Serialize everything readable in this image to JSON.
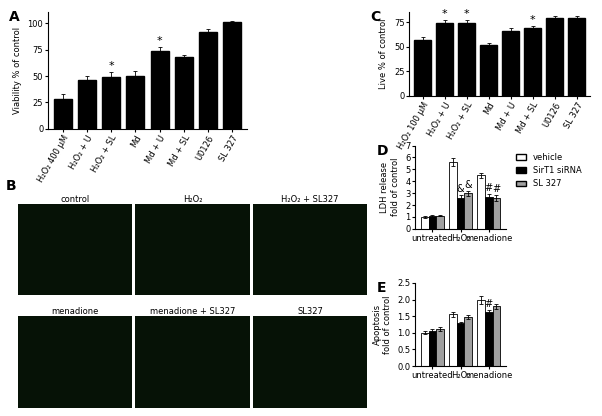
{
  "chart_data": [
    {
      "type": "bar",
      "title": "A",
      "y_label": "Viability % of control",
      "categories": [
        "H₂O₂ 400 µM",
        "H₂O₂ + U",
        "H₂O₂ + SL",
        "Md",
        "Md + U",
        "Md + SL",
        "U0126",
        "SL 327"
      ],
      "values": [
        28,
        46,
        49,
        50,
        74,
        68,
        92,
        101
      ],
      "errors": [
        5,
        4,
        5,
        5,
        3,
        2,
        2,
        1
      ],
      "significance": [
        null,
        null,
        "*",
        null,
        "*",
        null,
        null,
        null
      ],
      "color": "#000000",
      "ylim": [
        0,
        110
      ],
      "yticks": [
        0,
        25,
        50,
        75,
        100
      ]
    },
    {
      "type": "bar",
      "title": "C",
      "y_label": "Live % of control",
      "categories": [
        "H₂O₂ 100 µM",
        "H₂O₂ + U",
        "H₂O₂ + SL",
        "Md",
        "Md + U",
        "Md + SL",
        "U0126",
        "SL 327"
      ],
      "values": [
        57,
        74,
        74,
        52,
        66,
        69,
        79,
        79
      ],
      "errors": [
        3,
        3,
        3,
        2,
        3,
        2,
        2,
        2
      ],
      "significance": [
        null,
        "*",
        "*",
        null,
        null,
        "*",
        null,
        null
      ],
      "color": "#000000",
      "ylim": [
        0,
        85
      ],
      "yticks": [
        0,
        25,
        50,
        75
      ]
    },
    {
      "type": "bar",
      "title": "D",
      "y_label": "LDH release\nfold of control",
      "categories": [
        "untreated",
        "H₂O₂",
        "menadione"
      ],
      "series": [
        {
          "name": "vehicle",
          "color": "#ffffff",
          "values": [
            1.0,
            5.6,
            4.5
          ],
          "errors": [
            0.1,
            0.35,
            0.2
          ],
          "significance": [
            null,
            null,
            null
          ]
        },
        {
          "name": "SirT1 siRNA",
          "color": "#000000",
          "values": [
            1.05,
            2.6,
            2.7
          ],
          "errors": [
            0.1,
            0.25,
            0.25
          ],
          "significance": [
            null,
            "&",
            "#"
          ]
        },
        {
          "name": "SL 327",
          "color": "#a0a0a0",
          "values": [
            1.1,
            3.0,
            2.6
          ],
          "errors": [
            0.05,
            0.2,
            0.25
          ],
          "significance": [
            null,
            "&",
            "#"
          ]
        }
      ],
      "legend": "upper left",
      "ylim": [
        0,
        7
      ],
      "yticks": [
        0,
        1,
        2,
        3,
        4,
        5,
        6,
        7
      ]
    },
    {
      "type": "bar",
      "title": "E",
      "y_label": "Apoptosis\nfold of control",
      "categories": [
        "untreated",
        "H₂O₂",
        "menadione"
      ],
      "series": [
        {
          "name": "vehicle",
          "color": "#ffffff",
          "values": [
            1.0,
            1.55,
            2.0
          ],
          "errors": [
            0.05,
            0.07,
            0.12
          ],
          "significance": [
            null,
            null,
            null
          ]
        },
        {
          "name": "SirT1 siRNA",
          "color": "#000000",
          "values": [
            1.05,
            1.28,
            1.62
          ],
          "errors": [
            0.05,
            0.05,
            0.07
          ],
          "significance": [
            null,
            null,
            "#"
          ]
        },
        {
          "name": "SL 327",
          "color": "#a0a0a0",
          "values": [
            1.1,
            1.48,
            1.8
          ],
          "errors": [
            0.06,
            0.06,
            0.08
          ],
          "significance": [
            null,
            null,
            null
          ]
        }
      ],
      "ylim": [
        0,
        2.5
      ],
      "yticks": [
        {
          "value": 0,
          "label": "0.0"
        },
        {
          "value": 0.5,
          "label": "0.5"
        },
        {
          "value": 1.0,
          "label": "1.0"
        },
        {
          "value": 1.5,
          "label": "1.5"
        },
        {
          "value": 2.0,
          "label": "2.0"
        },
        {
          "value": 2.5,
          "label": "2.5"
        }
      ]
    }
  ],
  "image_panel": {
    "title": "B",
    "labels": [
      [
        "control",
        "H₂O₂",
        "H₂O₂ + SL327"
      ],
      [
        "menadione",
        "menadione + SL327",
        "SL327"
      ]
    ]
  }
}
